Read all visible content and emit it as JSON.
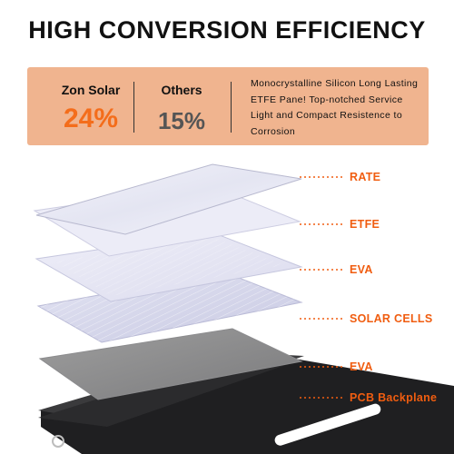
{
  "title": "HIGH CONVERSION EFFICIENCY",
  "comparison": {
    "brand": {
      "name": "Zon Solar",
      "value": "24%"
    },
    "others": {
      "name": "Others",
      "value": "15%"
    },
    "description": "Monocrystalline Silicon Long Lasting ETFE Pane! Top-notched Service Light and Compact Resistence to Corrosion"
  },
  "layers": [
    {
      "label": "RATE"
    },
    {
      "label": "ETFE"
    },
    {
      "label": "EVA"
    },
    {
      "label": "SOLAR CELLS"
    },
    {
      "label": "EVA"
    },
    {
      "label": "PCB Backplane"
    }
  ],
  "colors": {
    "accent_orange": "#f46d1b",
    "label_orange": "#f05d10",
    "panel_background": "#f0b48f",
    "others_gray": "#555555"
  }
}
